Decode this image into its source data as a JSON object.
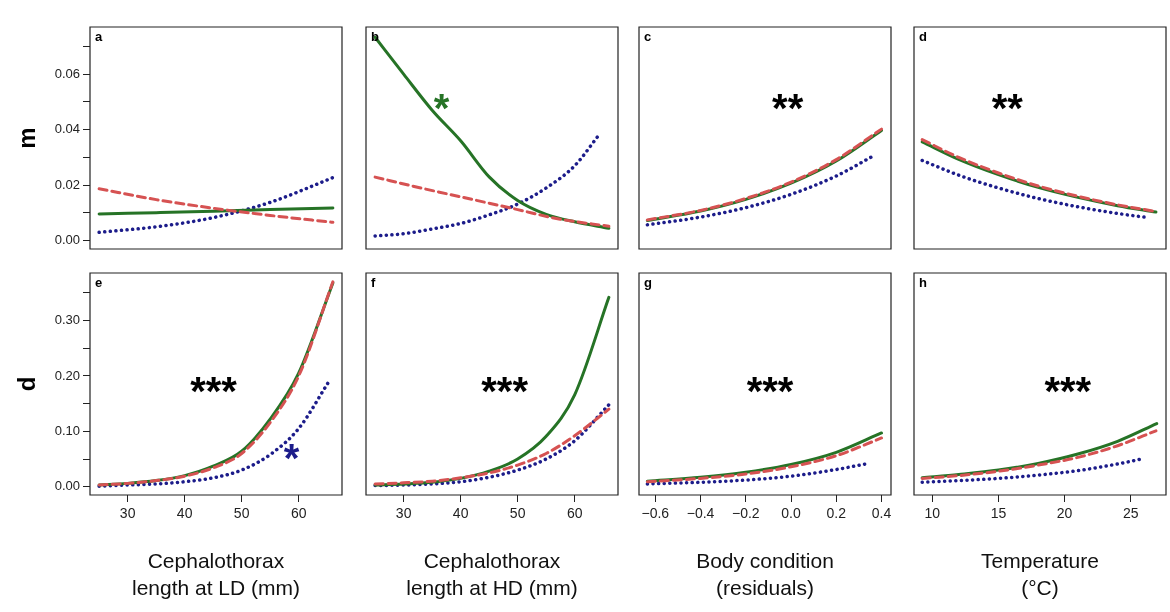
{
  "chart_data": [
    {
      "type": "line",
      "title": "a",
      "ylabel": "m",
      "xlim": [
        23.4,
        67.6
      ],
      "ylim": [
        -0.003,
        0.077
      ],
      "yticks": [
        {
          "value": 0,
          "label": "0.00"
        },
        {
          "value": 0.01,
          "label": null
        },
        {
          "value": 0.02,
          "label": "0.02"
        },
        {
          "value": 0.03,
          "label": null
        },
        {
          "value": 0.04,
          "label": "0.04"
        },
        {
          "value": 0.05,
          "label": null
        },
        {
          "value": 0.06,
          "label": "0.06"
        },
        {
          "value": 0.07,
          "label": null
        }
      ],
      "tick_labels": "y",
      "series": [
        {
          "color": "#267326",
          "line_style": "solid",
          "x": [
            25,
            35,
            45,
            55,
            66
          ],
          "values": [
            0.0096,
            0.0101,
            0.0106,
            0.0112,
            0.0118
          ]
        },
        {
          "color": "#d65252",
          "line_style": "dashed",
          "x": [
            25,
            35,
            45,
            55,
            66
          ],
          "values": [
            0.0187,
            0.0148,
            0.0117,
            0.0091,
            0.0066
          ]
        },
        {
          "color": "#1c1c8a",
          "line_style": "dotted",
          "x": [
            25,
            35,
            45,
            55,
            66
          ],
          "values": [
            0.003,
            0.005,
            0.0083,
            0.0138,
            0.0227
          ]
        }
      ]
    },
    {
      "type": "line",
      "title": "b",
      "xlim": [
        23.4,
        67.6
      ],
      "ylim": [
        -0.003,
        0.077
      ],
      "tick_labels": false,
      "annotations": [
        "*"
      ],
      "series": [
        {
          "color": "#267326",
          "line_style": "solid",
          "x": [
            25,
            30,
            35,
            40,
            45,
            50,
            55,
            60,
            66
          ],
          "values": [
            0.0733,
            0.06,
            0.047,
            0.036,
            0.023,
            0.0145,
            0.0095,
            0.0068,
            0.0045
          ]
        },
        {
          "color": "#d65252",
          "line_style": "dashed",
          "x": [
            25,
            33,
            40,
            50,
            57,
            66
          ],
          "values": [
            0.0229,
            0.019,
            0.0158,
            0.0112,
            0.0079,
            0.0052
          ]
        },
        {
          "color": "#1c1c8a",
          "line_style": "dotted",
          "x": [
            25,
            30,
            35,
            40,
            45,
            50,
            55,
            60,
            64.3
          ],
          "values": [
            0.0017,
            0.0025,
            0.0042,
            0.0062,
            0.0093,
            0.0132,
            0.019,
            0.027,
            0.0382
          ]
        }
      ]
    },
    {
      "type": "line",
      "title": "c",
      "xlim": [
        -0.672,
        0.442
      ],
      "ylim": [
        -0.003,
        0.077
      ],
      "tick_labels": false,
      "annotations": [
        "**"
      ],
      "series": [
        {
          "color": "#267326",
          "line_style": "solid",
          "x": [
            -0.635,
            -0.4,
            -0.2,
            0,
            0.2,
            0.4
          ],
          "values": [
            0.0073,
            0.0107,
            0.0149,
            0.0207,
            0.0287,
            0.0397
          ]
        },
        {
          "color": "#d65252",
          "line_style": "dashed",
          "x": [
            -0.635,
            -0.4,
            -0.2,
            0,
            0.2,
            0.4
          ],
          "values": [
            0.0075,
            0.0109,
            0.0152,
            0.0211,
            0.0292,
            0.0402
          ]
        },
        {
          "color": "#1c1c8a",
          "line_style": "dotted",
          "x": [
            -0.635,
            -0.4,
            -0.2,
            0,
            0.2,
            0.365
          ],
          "values": [
            0.0057,
            0.0085,
            0.0119,
            0.0167,
            0.0233,
            0.0306
          ]
        }
      ]
    },
    {
      "type": "line",
      "title": "d",
      "xlim": [
        8.62,
        27.66
      ],
      "ylim": [
        -0.003,
        0.077
      ],
      "tick_labels": false,
      "annotations": [
        "**"
      ],
      "series": [
        {
          "color": "#267326",
          "line_style": "solid",
          "x": [
            9.24,
            12,
            15,
            18,
            21,
            24,
            26.9
          ],
          "values": [
            0.0356,
            0.0293,
            0.0238,
            0.0192,
            0.0156,
            0.0126,
            0.0103
          ]
        },
        {
          "color": "#d65252",
          "line_style": "dashed",
          "x": [
            9.24,
            12,
            15,
            18,
            21,
            24,
            26.9
          ],
          "values": [
            0.0364,
            0.03,
            0.0244,
            0.0197,
            0.016,
            0.0129,
            0.0105
          ]
        },
        {
          "color": "#1c1c8a",
          "line_style": "dotted",
          "x": [
            9.24,
            12,
            15,
            18,
            21,
            24,
            26.3
          ],
          "values": [
            0.0289,
            0.0236,
            0.019,
            0.0152,
            0.0122,
            0.0098,
            0.0083
          ]
        }
      ]
    },
    {
      "type": "line",
      "title": "e",
      "ylabel": "d",
      "xlabel": "Cephalothorax\nlength at LD (mm)",
      "xlim": [
        23.4,
        67.6
      ],
      "ylim": [
        -0.015,
        0.386
      ],
      "xticks": [
        30,
        40,
        50,
        60
      ],
      "yticks": [
        {
          "value": 0,
          "label": "0.00"
        },
        {
          "value": 0.05,
          "label": null
        },
        {
          "value": 0.1,
          "label": "0.10"
        },
        {
          "value": 0.15,
          "label": null
        },
        {
          "value": 0.2,
          "label": "0.20"
        },
        {
          "value": 0.25,
          "label": null
        },
        {
          "value": 0.3,
          "label": "0.30"
        },
        {
          "value": 0.35,
          "label": null
        }
      ],
      "annotations": [
        "***",
        "*"
      ],
      "series": [
        {
          "color": "#267326",
          "line_style": "solid",
          "x": [
            25,
            30,
            35,
            40,
            45,
            50,
            55,
            60,
            66
          ],
          "values": [
            0.003,
            0.006,
            0.011,
            0.02,
            0.037,
            0.064,
            0.122,
            0.205,
            0.368
          ]
        },
        {
          "color": "#d65252",
          "line_style": "dashed",
          "x": [
            25,
            30,
            35,
            40,
            45,
            50,
            55,
            60,
            66
          ],
          "values": [
            0.003,
            0.006,
            0.011,
            0.019,
            0.034,
            0.06,
            0.116,
            0.2,
            0.37
          ]
        },
        {
          "color": "#1c1c8a",
          "line_style": "dotted",
          "x": [
            25,
            30,
            35,
            40,
            45,
            50,
            55,
            60,
            65.3
          ],
          "values": [
            0.001,
            0.003,
            0.005,
            0.009,
            0.016,
            0.03,
            0.058,
            0.105,
            0.19
          ]
        }
      ]
    },
    {
      "type": "line",
      "title": "f",
      "xlabel": "Cephalothorax\nlength at HD (mm)",
      "xlim": [
        23.4,
        67.6
      ],
      "ylim": [
        -0.015,
        0.386
      ],
      "xticks": [
        30,
        40,
        50,
        60
      ],
      "tick_labels": "x",
      "annotations": [
        "***"
      ],
      "series": [
        {
          "color": "#267326",
          "line_style": "solid",
          "x": [
            25,
            30,
            35,
            40,
            45,
            50,
            55,
            60,
            66
          ],
          "values": [
            0.003,
            0.005,
            0.008,
            0.015,
            0.028,
            0.05,
            0.091,
            0.166,
            0.342
          ]
        },
        {
          "color": "#d65252",
          "line_style": "dashed",
          "x": [
            25,
            30,
            35,
            40,
            45,
            50,
            55,
            60,
            66
          ],
          "values": [
            0.005,
            0.007,
            0.01,
            0.016,
            0.025,
            0.039,
            0.06,
            0.092,
            0.14
          ]
        },
        {
          "color": "#1c1c8a",
          "line_style": "dotted",
          "x": [
            25,
            30,
            35,
            40,
            45,
            50,
            55,
            60,
            66
          ],
          "values": [
            0.002,
            0.003,
            0.005,
            0.009,
            0.017,
            0.03,
            0.05,
            0.083,
            0.148
          ]
        }
      ]
    },
    {
      "type": "line",
      "title": "g",
      "xlabel": "Body condition\n(residuals)",
      "xlim": [
        -0.672,
        0.442
      ],
      "ylim": [
        -0.015,
        0.386
      ],
      "xticks": [
        {
          "value": -0.6,
          "label": "−0.6"
        },
        {
          "value": -0.4,
          "label": "−0.4"
        },
        {
          "value": -0.2,
          "label": "−0.2"
        },
        {
          "value": 0,
          "label": "0.0"
        },
        {
          "value": 0.2,
          "label": "0.2"
        },
        {
          "value": 0.4,
          "label": "0.4"
        }
      ],
      "tick_labels": "x",
      "annotations": [
        "***"
      ],
      "series": [
        {
          "color": "#267326",
          "line_style": "solid",
          "x": [
            -0.635,
            -0.4,
            -0.2,
            0,
            0.2,
            0.4
          ],
          "values": [
            0.01,
            0.017,
            0.026,
            0.04,
            0.062,
            0.097
          ]
        },
        {
          "color": "#d65252",
          "line_style": "dashed",
          "x": [
            -0.635,
            -0.4,
            -0.2,
            0,
            0.2,
            0.4
          ],
          "values": [
            0.009,
            0.015,
            0.023,
            0.036,
            0.056,
            0.088
          ]
        },
        {
          "color": "#1c1c8a",
          "line_style": "dotted",
          "x": [
            -0.635,
            -0.4,
            -0.2,
            0,
            0.2,
            0.342
          ],
          "values": [
            0.005,
            0.008,
            0.012,
            0.019,
            0.031,
            0.042
          ]
        }
      ]
    },
    {
      "type": "line",
      "title": "h",
      "xlabel": "Temperature\n(°C)",
      "xlim": [
        8.62,
        27.66
      ],
      "ylim": [
        -0.015,
        0.386
      ],
      "xticks": [
        10,
        15,
        20,
        25
      ],
      "tick_labels": "x",
      "annotations": [
        "***"
      ],
      "series": [
        {
          "color": "#267326",
          "line_style": "solid",
          "x": [
            9.24,
            12,
            15,
            18,
            21,
            24,
            26.96
          ],
          "values": [
            0.016,
            0.022,
            0.03,
            0.042,
            0.059,
            0.082,
            0.114
          ]
        },
        {
          "color": "#d65252",
          "line_style": "dashed",
          "x": [
            9.24,
            12,
            15,
            18,
            21,
            24,
            26.9
          ],
          "values": [
            0.015,
            0.02,
            0.028,
            0.039,
            0.053,
            0.074,
            0.101
          ]
        },
        {
          "color": "#1c1c8a",
          "line_style": "dotted",
          "x": [
            9.24,
            12,
            15,
            18,
            21,
            24,
            26
          ],
          "values": [
            0.008,
            0.011,
            0.015,
            0.021,
            0.029,
            0.041,
            0.051
          ]
        }
      ]
    }
  ]
}
